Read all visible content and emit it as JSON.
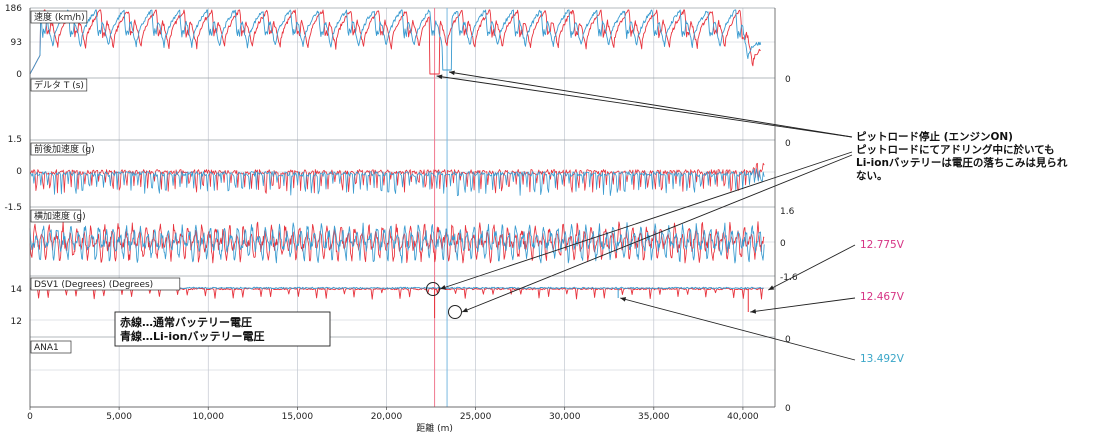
{
  "chart_data": {
    "type": "line",
    "x": {
      "label": "距離 (m)",
      "range": [
        0,
        41800
      ],
      "ticks": [
        "0",
        "5,000",
        "10,000",
        "15,000",
        "20,000",
        "25,000",
        "30,000",
        "35,000",
        "40,000"
      ],
      "tick_values": [
        0,
        5000,
        10000,
        15000,
        20000,
        25000,
        30000,
        35000,
        40000
      ]
    },
    "panels": [
      {
        "key": "speed",
        "label": "速度 (km/h)",
        "left_ticks": [
          "186",
          "93",
          "0"
        ],
        "left_values": [
          186,
          93,
          0
        ],
        "right_ticks": [
          "0"
        ]
      },
      {
        "key": "deltat",
        "label": "デルタ T (s)",
        "left_ticks": [],
        "right_ticks": [
          "0"
        ]
      },
      {
        "key": "longg",
        "label": "前後加速度 (g)",
        "left_ticks": [
          "1.5",
          "0",
          "-1.5"
        ],
        "left_values": [
          1.5,
          0,
          -1.5
        ],
        "right_ticks": [
          "0"
        ]
      },
      {
        "key": "latg",
        "label": "横加速度 (g)",
        "left_ticks": [],
        "right_ticks": [
          "1.6",
          "0",
          "-1.6"
        ],
        "right_values": [
          1.6,
          0,
          -1.6
        ]
      },
      {
        "key": "volt",
        "label": "DSV1 (Degrees) (Degrees)",
        "left_ticks": [
          "14",
          "12"
        ],
        "left_values": [
          14,
          12
        ],
        "right_ticks": []
      },
      {
        "key": "ana1",
        "label": "ANA1",
        "left_ticks": [],
        "right_ticks": [
          "0",
          "0"
        ]
      }
    ],
    "series": [
      {
        "name": "赤線…通常バッテリー電圧",
        "color": "#e8323c"
      },
      {
        "name": "青線…Li-ionバッテリー電圧",
        "color": "#3a9bd0"
      }
    ],
    "markers_x": [
      22700,
      23400
    ],
    "annotations": {
      "pit": [
        "ピットロード停止 (エンジンON)",
        "ピットロードにてアドリング中に於いても",
        "Li-ionバッテリーは電圧の落ちこみは見られ",
        "ない。"
      ],
      "values": [
        {
          "text": "12.775V",
          "color": "#d63384"
        },
        {
          "text": "12.467V",
          "color": "#d63384"
        },
        {
          "text": "13.492V",
          "color": "#3aa6c8"
        }
      ]
    },
    "legend": [
      "赤線…通常バッテリー電圧",
      "青線…Li-ionバッテリー電圧"
    ],
    "colors": {
      "red": "#e8323c",
      "blue": "#3a9bd0",
      "grid": "#b8bec8",
      "marker_red": "#f07a90",
      "marker_blue": "#7ab8e0"
    }
  }
}
